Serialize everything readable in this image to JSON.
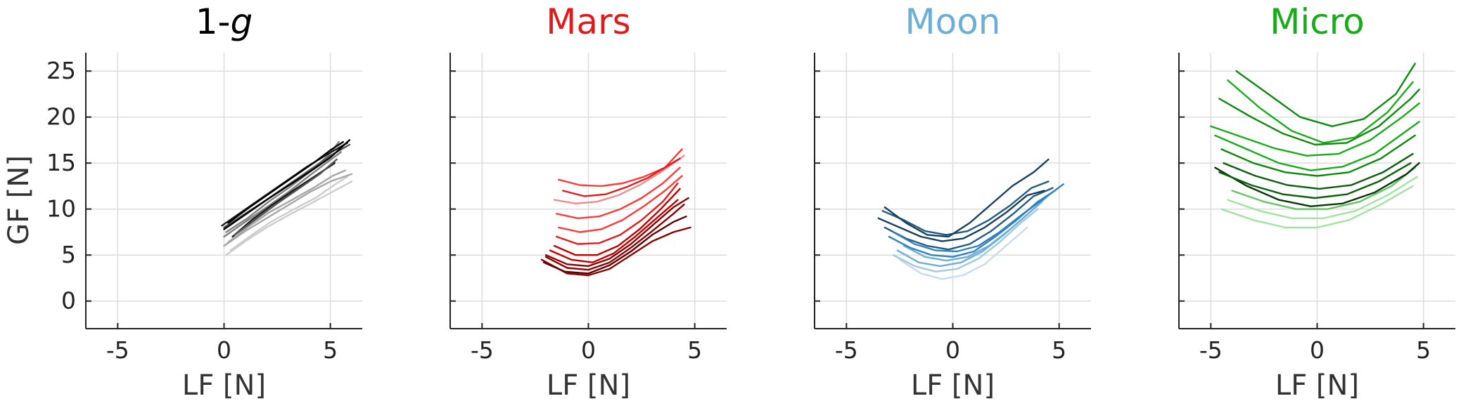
{
  "figure": {
    "ylabel": "GF [N]"
  },
  "chart_data": [
    {
      "type": "line",
      "title": "1-g",
      "title_parts": [
        "1-",
        "g"
      ],
      "title_color": "#000000",
      "xlabel": "LF [N]",
      "ylabel": "GF [N]",
      "xlim": [
        -6.5,
        6.5
      ],
      "ylim": [
        -3,
        27
      ],
      "xticks": [
        -5,
        0,
        5
      ],
      "xtick_labels": [
        "-5",
        "0",
        "5"
      ],
      "yticks": [
        0,
        5,
        10,
        15,
        20,
        25
      ],
      "ytick_labels": [
        "0",
        "5",
        "10",
        "15",
        "20",
        "25"
      ],
      "grid": true,
      "series_colors": [
        "#000000",
        "#1a1a1a",
        "#555555",
        "#808080",
        "#a6a6a6",
        "#cccccc"
      ],
      "series": [
        {
          "color": "#cccccc",
          "x": [
            0.1,
            1.0,
            2.0,
            3.0,
            4.0,
            5.2,
            6.0
          ],
          "y": [
            5.0,
            6.5,
            8.0,
            9.3,
            10.5,
            12.0,
            13.0
          ]
        },
        {
          "color": "#cccccc",
          "x": [
            0.3,
            1.2,
            2.2,
            3.3,
            4.3,
            5.3,
            5.8
          ],
          "y": [
            5.5,
            7.0,
            8.6,
            10.0,
            11.2,
            12.8,
            13.5
          ]
        },
        {
          "color": "#a6a6a6",
          "x": [
            0.0,
            1.0,
            2.0,
            3.0,
            4.0,
            5.0,
            6.0
          ],
          "y": [
            6.0,
            7.6,
            9.0,
            10.4,
            11.8,
            13.0,
            13.8
          ]
        },
        {
          "color": "#a6a6a6",
          "x": [
            0.2,
            1.1,
            2.1,
            3.2,
            4.2,
            5.1,
            5.7
          ],
          "y": [
            6.4,
            8.0,
            9.6,
            11.0,
            12.3,
            13.6,
            14.2
          ]
        },
        {
          "color": "#808080",
          "x": [
            0.0,
            1.0,
            2.0,
            3.0,
            4.0,
            4.8,
            5.5
          ],
          "y": [
            7.0,
            8.6,
            10.2,
            11.8,
            13.6,
            15.0,
            16.2
          ]
        },
        {
          "color": "#808080",
          "x": [
            0.1,
            1.1,
            2.1,
            3.1,
            4.0,
            4.9,
            5.4
          ],
          "y": [
            7.5,
            9.0,
            10.8,
            12.4,
            14.0,
            15.8,
            17.3
          ]
        },
        {
          "color": "#555555",
          "x": [
            0.0,
            1.0,
            2.0,
            3.0,
            4.0,
            5.0,
            5.9
          ],
          "y": [
            8.0,
            9.5,
            11.0,
            12.6,
            14.2,
            15.8,
            17.0
          ]
        },
        {
          "color": "#1a1a1a",
          "x": [
            -0.1,
            0.9,
            1.9,
            2.9,
            3.9,
            4.9,
            5.8
          ],
          "y": [
            8.2,
            9.8,
            11.4,
            13.0,
            14.6,
            16.0,
            17.2
          ]
        },
        {
          "color": "#000000",
          "x": [
            0.0,
            1.0,
            2.0,
            3.0,
            4.0,
            5.0,
            5.9
          ],
          "y": [
            7.8,
            9.4,
            11.0,
            12.5,
            14.0,
            15.6,
            17.5
          ]
        },
        {
          "color": "#000000",
          "x": [
            0.2,
            1.2,
            2.2,
            3.2,
            4.2,
            5.0,
            5.6
          ],
          "y": [
            8.5,
            10.2,
            11.8,
            13.4,
            15.0,
            16.4,
            17.3
          ]
        },
        {
          "color": "#1a1a1a",
          "x": [
            0.4,
            1.3,
            2.3,
            3.3,
            4.3,
            5.2
          ],
          "y": [
            7.0,
            8.8,
            10.5,
            12.1,
            13.6,
            15.0
          ]
        },
        {
          "color": "#555555",
          "x": [
            0.5,
            1.5,
            2.5,
            3.5,
            4.5,
            5.3
          ],
          "y": [
            7.2,
            8.9,
            10.6,
            12.2,
            13.8,
            15.4
          ]
        }
      ]
    },
    {
      "type": "line",
      "title": "Mars",
      "title_color": "#e31a1c",
      "xlabel": "LF [N]",
      "xlim": [
        -6.5,
        6.5
      ],
      "ylim": [
        -3,
        27
      ],
      "xticks": [
        -5,
        0,
        5
      ],
      "xtick_labels": [
        "-5",
        "0",
        "5"
      ],
      "yticks": [
        0,
        5,
        10,
        15,
        20,
        25
      ],
      "grid": true,
      "series_colors": [
        "#f28b8b",
        "#ff3a3a",
        "#e31a1c",
        "#c00000",
        "#8b0000",
        "#5c0000"
      ],
      "series": [
        {
          "color": "#8b0000",
          "x": [
            -2.2,
            -1.0,
            0.0,
            1.0,
            2.0,
            3.0,
            4.0,
            4.8
          ],
          "y": [
            4.5,
            3.0,
            2.8,
            3.5,
            5.0,
            6.5,
            7.5,
            8.0
          ]
        },
        {
          "color": "#8b0000",
          "x": [
            -2.0,
            -1.0,
            0.0,
            1.0,
            2.0,
            3.0,
            4.0,
            4.5
          ],
          "y": [
            4.8,
            3.6,
            3.4,
            4.2,
            5.8,
            7.6,
            9.5,
            10.5
          ]
        },
        {
          "color": "#5c0000",
          "x": [
            -2.1,
            -1.1,
            0.0,
            1.0,
            2.0,
            3.0,
            4.0,
            4.6
          ],
          "y": [
            4.2,
            3.2,
            3.0,
            3.9,
            5.4,
            7.2,
            8.6,
            9.2
          ]
        },
        {
          "color": "#c00000",
          "x": [
            -1.8,
            -0.8,
            0.2,
            1.2,
            2.2,
            3.2,
            4.2
          ],
          "y": [
            5.5,
            4.5,
            4.2,
            5.2,
            7.0,
            9.0,
            11.0
          ]
        },
        {
          "color": "#c00000",
          "x": [
            -1.6,
            -0.6,
            0.4,
            1.4,
            2.4,
            3.4,
            4.3
          ],
          "y": [
            6.0,
            5.0,
            5.0,
            6.0,
            7.8,
            10.0,
            12.2
          ]
        },
        {
          "color": "#e31a1c",
          "x": [
            -1.5,
            -0.5,
            0.5,
            1.5,
            2.5,
            3.5,
            4.2
          ],
          "y": [
            7.0,
            6.2,
            6.3,
            7.2,
            8.8,
            10.8,
            12.8
          ]
        },
        {
          "color": "#ff3a3a",
          "x": [
            -1.4,
            -0.4,
            0.6,
            1.6,
            2.6,
            3.6,
            4.4
          ],
          "y": [
            8.0,
            7.5,
            7.8,
            8.8,
            10.3,
            12.0,
            13.6
          ]
        },
        {
          "color": "#ff3a3a",
          "x": [
            -1.5,
            -0.5,
            0.5,
            1.5,
            2.5,
            3.5,
            4.3
          ],
          "y": [
            9.5,
            9.0,
            9.2,
            10.0,
            11.2,
            12.8,
            14.5
          ]
        },
        {
          "color": "#f28b8b",
          "x": [
            -1.6,
            -0.6,
            0.4,
            1.4,
            2.4,
            3.4,
            4.5
          ],
          "y": [
            11.0,
            10.6,
            10.8,
            11.5,
            12.6,
            14.0,
            15.8
          ]
        },
        {
          "color": "#ff3a3a",
          "x": [
            -1.4,
            -0.4,
            0.6,
            1.6,
            2.6,
            3.6,
            4.4
          ],
          "y": [
            13.2,
            12.6,
            12.5,
            12.8,
            13.5,
            14.5,
            16.5
          ]
        },
        {
          "color": "#e31a1c",
          "x": [
            -1.2,
            -0.2,
            0.8,
            1.8,
            2.8,
            3.8,
            4.3
          ],
          "y": [
            12.0,
            11.4,
            11.6,
            12.4,
            13.4,
            14.8,
            15.5
          ]
        },
        {
          "color": "#8b0000",
          "x": [
            -2.0,
            -1.0,
            0.0,
            1.0,
            2.0,
            3.0,
            4.0,
            4.7
          ],
          "y": [
            5.0,
            4.0,
            3.8,
            4.6,
            6.2,
            8.2,
            10.2,
            11.2
          ]
        }
      ]
    },
    {
      "type": "line",
      "title": "Moon",
      "title_color": "#6baed6",
      "xlabel": "LF [N]",
      "xlim": [
        -6.5,
        6.5
      ],
      "ylim": [
        -3,
        27
      ],
      "xticks": [
        -5,
        0,
        5
      ],
      "xtick_labels": [
        "-5",
        "0",
        "5"
      ],
      "yticks": [
        0,
        5,
        10,
        15,
        20,
        25
      ],
      "grid": true,
      "series_colors": [
        "#c6dbef",
        "#9ecae1",
        "#6baed6",
        "#3182bd",
        "#225b80",
        "#17405c"
      ],
      "series": [
        {
          "color": "#c6dbef",
          "x": [
            -2.5,
            -1.5,
            -0.5,
            0.5,
            1.5,
            2.5,
            3.5
          ],
          "y": [
            4.5,
            3.0,
            2.4,
            2.8,
            4.0,
            6.0,
            8.0
          ]
        },
        {
          "color": "#9ecae1",
          "x": [
            -2.8,
            -1.8,
            -0.8,
            0.2,
            1.2,
            2.2,
            3.2,
            4.0
          ],
          "y": [
            5.0,
            3.8,
            3.2,
            3.5,
            4.6,
            6.4,
            8.5,
            10.0
          ]
        },
        {
          "color": "#6baed6",
          "x": [
            -2.6,
            -1.6,
            -0.6,
            0.4,
            1.4,
            2.4,
            3.4,
            4.2
          ],
          "y": [
            5.5,
            4.2,
            3.8,
            4.2,
            5.4,
            7.2,
            9.2,
            10.8
          ]
        },
        {
          "color": "#6baed6",
          "x": [
            -2.3,
            -1.3,
            -0.3,
            0.7,
            1.7,
            2.7,
            3.7,
            4.5
          ],
          "y": [
            6.0,
            4.8,
            4.4,
            4.8,
            6.0,
            7.8,
            9.8,
            11.5
          ]
        },
        {
          "color": "#3182bd",
          "x": [
            -3.0,
            -2.0,
            -1.0,
            0.0,
            1.0,
            2.0,
            3.0,
            4.0,
            4.8
          ],
          "y": [
            7.0,
            5.8,
            5.0,
            4.8,
            5.4,
            7.0,
            8.8,
            10.8,
            12.0
          ]
        },
        {
          "color": "#225b80",
          "x": [
            -3.2,
            -2.2,
            -1.2,
            -0.2,
            0.8,
            1.8,
            2.8,
            3.8,
            4.7
          ],
          "y": [
            8.0,
            6.8,
            6.0,
            5.6,
            6.2,
            7.6,
            9.4,
            11.4,
            12.3
          ]
        },
        {
          "color": "#17405c",
          "x": [
            -3.5,
            -2.5,
            -1.5,
            -0.5,
            0.5,
            1.5,
            2.5,
            3.5,
            4.3
          ],
          "y": [
            9.0,
            8.0,
            7.0,
            6.5,
            6.8,
            8.0,
            9.6,
            11.5,
            12.0
          ]
        },
        {
          "color": "#225b80",
          "x": [
            -3.3,
            -2.3,
            -1.3,
            -0.3,
            0.7,
            1.7,
            2.7,
            3.7,
            4.5
          ],
          "y": [
            9.8,
            8.8,
            7.6,
            7.2,
            7.6,
            8.8,
            10.4,
            12.3,
            13.0
          ]
        },
        {
          "color": "#17405c",
          "x": [
            -3.2,
            -2.2,
            -1.2,
            -0.2,
            0.8,
            1.8,
            2.8,
            3.8,
            4.5
          ],
          "y": [
            10.2,
            8.5,
            7.2,
            7.0,
            8.5,
            10.5,
            12.5,
            14.0,
            15.4
          ]
        },
        {
          "color": "#3182bd",
          "x": [
            -2.8,
            -1.8,
            -0.8,
            0.2,
            1.2,
            2.2,
            3.2,
            4.2,
            5.2
          ],
          "y": [
            7.5,
            6.2,
            5.5,
            5.4,
            6.0,
            7.5,
            9.3,
            11.0,
            12.7
          ]
        }
      ]
    },
    {
      "type": "line",
      "title": "Micro",
      "title_color": "#1aab1a",
      "xlabel": "LF [N]",
      "xlim": [
        -6.5,
        6.5
      ],
      "ylim": [
        -3,
        27
      ],
      "xticks": [
        -5,
        0,
        5
      ],
      "xtick_labels": [
        "-5",
        "0",
        "5"
      ],
      "yticks": [
        0,
        5,
        10,
        15,
        20,
        25
      ],
      "grid": true,
      "series_colors": [
        "#a1e3a1",
        "#66c266",
        "#1aab1a",
        "#0d8a0d",
        "#0b5e0b",
        "#063806"
      ],
      "series": [
        {
          "color": "#a1e3a1",
          "x": [
            -4.5,
            -3.0,
            -1.5,
            0.0,
            1.5,
            3.0,
            4.5
          ],
          "y": [
            10.0,
            8.8,
            8.0,
            8.0,
            8.8,
            10.5,
            12.5
          ]
        },
        {
          "color": "#a1e3a1",
          "x": [
            -4.2,
            -2.7,
            -1.2,
            0.3,
            1.8,
            3.3,
            4.7
          ],
          "y": [
            11.0,
            9.8,
            9.0,
            9.0,
            9.8,
            11.5,
            13.5
          ]
        },
        {
          "color": "#66c266",
          "x": [
            -4.0,
            -2.5,
            -1.0,
            0.5,
            2.0,
            3.5,
            4.6
          ],
          "y": [
            12.0,
            10.8,
            10.0,
            10.0,
            10.8,
            12.5,
            14.5
          ]
        },
        {
          "color": "#063806",
          "x": [
            -4.8,
            -3.3,
            -1.8,
            -0.3,
            1.2,
            2.7,
            4.2,
            4.8
          ],
          "y": [
            14.5,
            12.5,
            11.0,
            10.3,
            10.6,
            11.8,
            13.8,
            15.0
          ]
        },
        {
          "color": "#0b5e0b",
          "x": [
            -4.6,
            -3.1,
            -1.6,
            -0.1,
            1.4,
            2.9,
            4.4
          ],
          "y": [
            14.0,
            12.6,
            11.6,
            11.2,
            11.6,
            13.0,
            15.0
          ]
        },
        {
          "color": "#0b5e0b",
          "x": [
            -4.4,
            -2.9,
            -1.4,
            0.1,
            1.6,
            3.1,
            4.5
          ],
          "y": [
            15.0,
            13.6,
            12.6,
            12.2,
            12.6,
            14.0,
            16.0
          ]
        },
        {
          "color": "#0d8a0d",
          "x": [
            -4.5,
            -3.0,
            -1.5,
            0.0,
            1.5,
            3.0,
            4.6
          ],
          "y": [
            16.5,
            15.0,
            14.0,
            13.6,
            14.0,
            15.5,
            18.0
          ]
        },
        {
          "color": "#1aab1a",
          "x": [
            -4.8,
            -3.3,
            -1.8,
            -0.3,
            1.2,
            2.7,
            4.2,
            4.8
          ],
          "y": [
            18.0,
            16.5,
            15.0,
            14.2,
            14.6,
            16.0,
            18.5,
            19.5
          ]
        },
        {
          "color": "#1aab1a",
          "x": [
            -5.0,
            -3.5,
            -2.0,
            -0.5,
            1.0,
            2.5,
            4.0,
            4.8
          ],
          "y": [
            19.0,
            17.8,
            16.6,
            15.8,
            16.0,
            17.5,
            20.0,
            21.5
          ]
        },
        {
          "color": "#0d8a0d",
          "x": [
            -4.6,
            -3.1,
            -1.6,
            -0.1,
            1.4,
            2.9,
            4.4,
            4.8
          ],
          "y": [
            22.0,
            20.0,
            18.2,
            17.0,
            17.2,
            19.0,
            22.0,
            23.0
          ]
        },
        {
          "color": "#0d8a0d",
          "x": [
            -3.8,
            -2.3,
            -0.8,
            0.7,
            2.2,
            3.7,
            4.6
          ],
          "y": [
            25.0,
            22.5,
            20.0,
            19.0,
            19.8,
            22.5,
            25.8
          ]
        },
        {
          "color": "#1aab1a",
          "x": [
            -4.2,
            -2.7,
            -1.2,
            0.3,
            1.8,
            3.3,
            4.5
          ],
          "y": [
            24.0,
            21.0,
            18.5,
            17.2,
            17.8,
            20.5,
            23.8
          ]
        }
      ]
    }
  ]
}
